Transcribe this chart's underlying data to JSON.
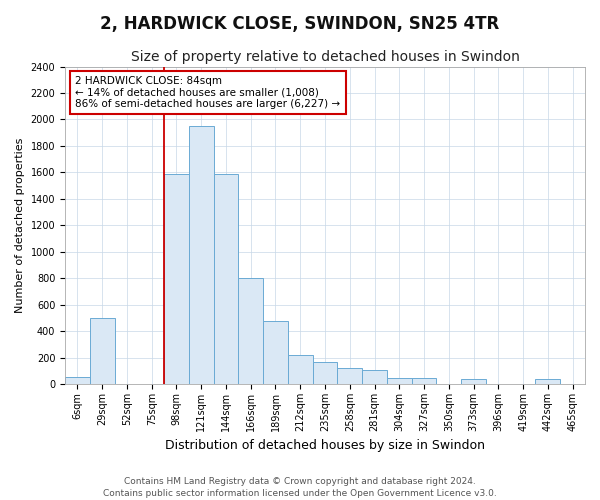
{
  "title": "2, HARDWICK CLOSE, SWINDON, SN25 4TR",
  "subtitle": "Size of property relative to detached houses in Swindon",
  "xlabel": "Distribution of detached houses by size in Swindon",
  "ylabel": "Number of detached properties",
  "categories": [
    "6sqm",
    "29sqm",
    "52sqm",
    "75sqm",
    "98sqm",
    "121sqm",
    "144sqm",
    "166sqm",
    "189sqm",
    "212sqm",
    "235sqm",
    "258sqm",
    "281sqm",
    "304sqm",
    "327sqm",
    "350sqm",
    "373sqm",
    "396sqm",
    "419sqm",
    "442sqm",
    "465sqm"
  ],
  "values": [
    55,
    500,
    0,
    0,
    1590,
    1950,
    1590,
    800,
    480,
    220,
    170,
    120,
    110,
    50,
    50,
    0,
    40,
    0,
    0,
    40,
    0
  ],
  "bar_color": "#dae8f5",
  "bar_edge_color": "#6aaad4",
  "red_line_x": 3.5,
  "annotation_line1": "2 HARDWICK CLOSE: 84sqm",
  "annotation_line2": "← 14% of detached houses are smaller (1,008)",
  "annotation_line3": "86% of semi-detached houses are larger (6,227) →",
  "annotation_box_facecolor": "#ffffff",
  "annotation_box_edgecolor": "#cc0000",
  "ylim": [
    0,
    2400
  ],
  "yticks": [
    0,
    200,
    400,
    600,
    800,
    1000,
    1200,
    1400,
    1600,
    1800,
    2000,
    2200,
    2400
  ],
  "footnote1": "Contains HM Land Registry data © Crown copyright and database right 2024.",
  "footnote2": "Contains public sector information licensed under the Open Government Licence v3.0.",
  "title_fontsize": 12,
  "subtitle_fontsize": 10,
  "xlabel_fontsize": 9,
  "ylabel_fontsize": 8,
  "tick_fontsize": 7,
  "annot_fontsize": 7.5,
  "footnote_fontsize": 6.5
}
